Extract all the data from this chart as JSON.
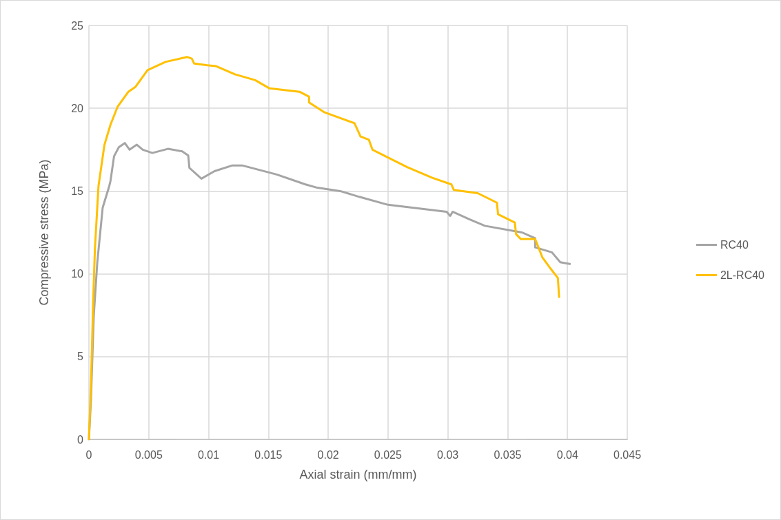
{
  "chart_data": {
    "type": "line",
    "xlabel": "Axial strain (mm/mm)",
    "ylabel": "Compressive stress (MPa)",
    "xlim": [
      0,
      0.045
    ],
    "xticks": [
      0,
      0.005,
      0.01,
      0.015,
      0.02,
      0.025,
      0.03,
      0.035,
      0.04,
      0.045
    ],
    "ylim": [
      0,
      25
    ],
    "yticks": [
      0,
      5,
      10,
      15,
      20,
      25
    ],
    "grid": true,
    "legend": "right",
    "marker": "none",
    "line_style": "solid",
    "series": [
      {
        "name": "RC40",
        "color": "#a5a5a5",
        "x": [
          0,
          0.00017,
          0.0004,
          0.0007,
          0.00115,
          0.0017,
          0.0018,
          0.0021,
          0.0025,
          0.003,
          0.0034,
          0.004,
          0.0045,
          0.0053,
          0.0066,
          0.0078,
          0.0083,
          0.0084,
          0.0094,
          0.0105,
          0.012,
          0.0128,
          0.0157,
          0.0181,
          0.0191,
          0.021,
          0.0226,
          0.025,
          0.0299,
          0.0302,
          0.0304,
          0.0318,
          0.0331,
          0.0362,
          0.0373,
          0.0373,
          0.0387,
          0.0394,
          0.0402
        ],
        "values": [
          0,
          2.4,
          7.4,
          10.7,
          14,
          15.3,
          15.6,
          17.1,
          17.65,
          17.9,
          17.5,
          17.8,
          17.5,
          17.3,
          17.55,
          17.4,
          17.15,
          16.4,
          15.75,
          16.2,
          16.55,
          16.55,
          16,
          15.4,
          15.2,
          15,
          14.65,
          14.17,
          13.75,
          13.5,
          13.75,
          13.3,
          12.9,
          12.5,
          12.15,
          11.6,
          11.3,
          10.7,
          10.6
        ]
      },
      {
        "name": "2L-RC40",
        "color": "#ffc000",
        "x": [
          0,
          0.00017,
          0.00035,
          0.0005,
          0.0008,
          0.0013,
          0.0018,
          0.0024,
          0.0033,
          0.0039,
          0.0049,
          0.0064,
          0.0082,
          0.0086,
          0.0088,
          0.0099,
          0.0106,
          0.0122,
          0.0139,
          0.0151,
          0.0176,
          0.0184,
          0.0184,
          0.0197,
          0.0222,
          0.0227,
          0.0234,
          0.0237,
          0.0266,
          0.0287,
          0.0303,
          0.0305,
          0.0325,
          0.0341,
          0.0342,
          0.0356,
          0.0357,
          0.0361,
          0.0373,
          0.0379,
          0.0385,
          0.0392,
          0.0393
        ],
        "values": [
          0,
          3.24,
          8.2,
          11.5,
          15.3,
          17.8,
          19,
          20.1,
          21,
          21.3,
          22.3,
          22.8,
          23.1,
          23,
          22.7,
          22.6,
          22.55,
          22.05,
          21.7,
          21.2,
          21,
          20.7,
          20.35,
          19.75,
          19.1,
          18.3,
          18.1,
          17.5,
          16.45,
          15.8,
          15.4,
          15.07,
          14.87,
          14.3,
          13.6,
          13.1,
          12.4,
          12.1,
          12.1,
          11,
          10.4,
          9.75,
          8.6
        ]
      }
    ]
  }
}
